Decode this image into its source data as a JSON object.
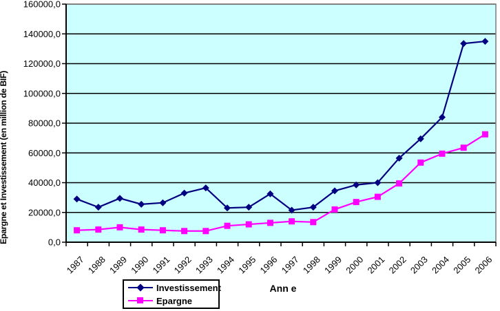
{
  "page": {
    "background": "#FFFFFF"
  },
  "chart_data": {
    "type": "line",
    "title": "",
    "xlabel": "Ann e",
    "ylabel": "Epargne et Investissement (en million de BIF)",
    "categories": [
      "1987",
      "1988",
      "1989",
      "1990",
      "1991",
      "1992",
      "1993",
      "1994",
      "1995",
      "1996",
      "1997",
      "1998",
      "1999",
      "2000",
      "2001",
      "2002",
      "2003",
      "2004",
      "2005",
      "2006"
    ],
    "series": [
      {
        "name": "Investissement",
        "marker": "diamond",
        "color": "#000080",
        "values": [
          29000,
          23500,
          29500,
          25500,
          26500,
          33000,
          36500,
          23000,
          23500,
          32500,
          21500,
          23500,
          34500,
          38500,
          40000,
          56500,
          69500,
          84000,
          133500,
          135000
        ]
      },
      {
        "name": "Epargne",
        "marker": "square",
        "color": "#FF00FF",
        "values": [
          8000,
          8500,
          10000,
          8500,
          8000,
          7500,
          7500,
          11000,
          12000,
          13000,
          14000,
          13500,
          22000,
          27000,
          30500,
          39500,
          53500,
          59500,
          63500,
          72500
        ]
      }
    ],
    "ylim": [
      0,
      160000
    ],
    "ytick_step": 20000,
    "ytick_labels": [
      "0,0",
      "20000,0",
      "40000,0",
      "60000,0",
      "80000,0",
      "100000,0",
      "120000,0",
      "140000,0",
      "160000,0"
    ],
    "grid": "horizontal",
    "legend_position": "bottom-left",
    "colors": {
      "plot_bg": "#CCFFFF",
      "grid": "#000000",
      "axis": "#000000",
      "plot_border": "#808080"
    }
  }
}
